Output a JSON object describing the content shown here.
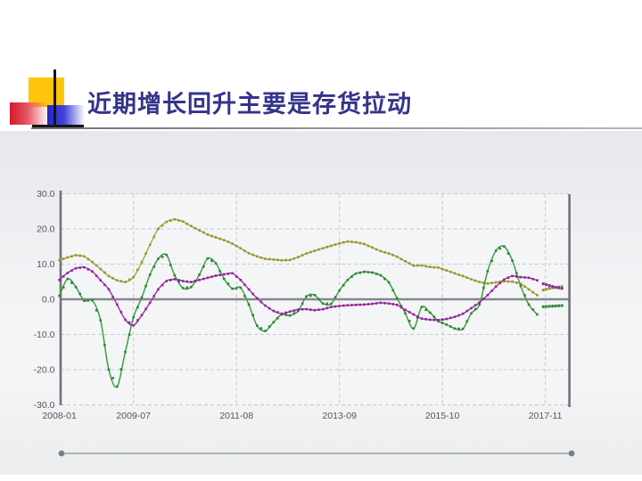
{
  "slide": {
    "title": "近期增长回升主要是存货拉动",
    "title_color": "#34348c"
  },
  "chart_data": {
    "type": "line",
    "title": "",
    "xlabel": "",
    "ylabel": "",
    "x_unit": "months since 2008-01",
    "ylim": [
      -30,
      30
    ],
    "grid": "dashed",
    "legend": "none",
    "y_ticks": [
      {
        "v": 30,
        "label": "30.0"
      },
      {
        "v": 20,
        "label": "20.0"
      },
      {
        "v": 10,
        "label": "10.0"
      },
      {
        "v": 0,
        "label": "0.0"
      },
      {
        "v": -10,
        "label": "-10.0"
      },
      {
        "v": -20,
        "label": "-20.0"
      },
      {
        "v": -30,
        "label": "-30.0"
      }
    ],
    "x_ticks": [
      {
        "m": 0,
        "label": "2008-01"
      },
      {
        "m": 18,
        "label": "2009-07"
      },
      {
        "m": 43,
        "label": "2011-08"
      },
      {
        "m": 68,
        "label": "2013-09"
      },
      {
        "m": 93,
        "label": "2015-10"
      },
      {
        "m": 118,
        "label": "2017-11"
      }
    ],
    "series": [
      {
        "name": "olive-series",
        "color": "#abab43",
        "marker_color": "#96962f",
        "solid": [
          [
            0,
            11.1
          ],
          [
            2,
            11.9
          ],
          [
            4,
            12.5
          ],
          [
            6,
            12.2
          ],
          [
            8,
            10.6
          ],
          [
            10,
            8.6
          ],
          [
            12,
            6.6
          ],
          [
            14,
            5.4
          ],
          [
            16,
            4.9
          ],
          [
            18,
            6.3
          ],
          [
            20,
            10.5
          ],
          [
            22,
            15.5
          ],
          [
            24,
            20.0
          ],
          [
            26,
            22.0
          ],
          [
            28,
            22.7
          ],
          [
            30,
            22.1
          ],
          [
            32,
            20.8
          ],
          [
            34,
            19.6
          ],
          [
            36,
            18.4
          ],
          [
            38,
            17.6
          ],
          [
            40,
            16.8
          ],
          [
            42,
            15.8
          ],
          [
            44,
            14.5
          ],
          [
            46,
            13.1
          ],
          [
            48,
            12.2
          ],
          [
            50,
            11.5
          ],
          [
            52,
            11.3
          ],
          [
            54,
            11.1
          ],
          [
            56,
            11.2
          ],
          [
            58,
            12.0
          ],
          [
            60,
            13.0
          ],
          [
            62,
            13.8
          ],
          [
            64,
            14.5
          ],
          [
            66,
            15.2
          ],
          [
            68,
            15.9
          ],
          [
            70,
            16.4
          ],
          [
            72,
            16.2
          ],
          [
            74,
            15.7
          ],
          [
            76,
            14.7
          ],
          [
            78,
            13.7
          ],
          [
            80,
            13.0
          ],
          [
            82,
            12.1
          ],
          [
            84,
            10.8
          ],
          [
            86,
            9.6
          ],
          [
            88,
            9.6
          ],
          [
            90,
            9.2
          ],
          [
            92,
            9.0
          ],
          [
            94,
            8.2
          ],
          [
            96,
            7.4
          ],
          [
            98,
            6.6
          ],
          [
            100,
            5.7
          ],
          [
            102,
            4.9
          ],
          [
            104,
            4.5
          ],
          [
            106,
            4.8
          ],
          [
            108,
            5.1
          ],
          [
            110,
            5.0
          ],
          [
            112,
            4.4
          ],
          [
            114,
            2.8
          ],
          [
            116,
            1.2
          ]
        ],
        "dotted": [
          [
            117.5,
            2.6
          ],
          [
            119,
            3.1
          ],
          [
            120.5,
            3.4
          ],
          [
            122,
            3.6
          ]
        ]
      },
      {
        "name": "green-series",
        "color": "#3f9e44",
        "marker_color": "#2e8433",
        "solid": [
          [
            0,
            1.0
          ],
          [
            2,
            5.8
          ],
          [
            4,
            3.5
          ],
          [
            6,
            -0.4
          ],
          [
            8,
            -0.3
          ],
          [
            10,
            -6.0
          ],
          [
            12,
            -20.0
          ],
          [
            14,
            -24.8
          ],
          [
            16,
            -15.0
          ],
          [
            18,
            -5.1
          ],
          [
            20,
            0.5
          ],
          [
            22,
            7.0
          ],
          [
            24,
            11.5
          ],
          [
            26,
            12.6
          ],
          [
            28,
            6.8
          ],
          [
            30,
            3.2
          ],
          [
            32,
            3.5
          ],
          [
            34,
            7.0
          ],
          [
            36,
            11.6
          ],
          [
            38,
            10.2
          ],
          [
            40,
            5.8
          ],
          [
            42,
            3.0
          ],
          [
            44,
            3.3
          ],
          [
            46,
            -1.5
          ],
          [
            48,
            -7.5
          ],
          [
            50,
            -9.0
          ],
          [
            52,
            -6.5
          ],
          [
            54,
            -4.3
          ],
          [
            56,
            -4.6
          ],
          [
            58,
            -3.3
          ],
          [
            60,
            0.8
          ],
          [
            62,
            1.2
          ],
          [
            64,
            -1.2
          ],
          [
            66,
            -1.3
          ],
          [
            68,
            2.5
          ],
          [
            70,
            5.5
          ],
          [
            72,
            7.3
          ],
          [
            74,
            7.8
          ],
          [
            76,
            7.6
          ],
          [
            78,
            6.8
          ],
          [
            80,
            4.8
          ],
          [
            82,
            0.3
          ],
          [
            84,
            -4.0
          ],
          [
            86,
            -8.3
          ],
          [
            88,
            -2.2
          ],
          [
            90,
            -3.8
          ],
          [
            92,
            -6.2
          ],
          [
            94,
            -7.2
          ],
          [
            96,
            -8.3
          ],
          [
            98,
            -8.4
          ],
          [
            100,
            -4.0
          ],
          [
            102,
            -1.5
          ],
          [
            104,
            8.0
          ],
          [
            106,
            13.8
          ],
          [
            108,
            15.0
          ],
          [
            110,
            11.0
          ],
          [
            112,
            3.8
          ],
          [
            114,
            -1.5
          ],
          [
            116,
            -4.3
          ]
        ],
        "dotted": [
          [
            117.5,
            -2.1
          ],
          [
            119,
            -2.0
          ],
          [
            120.5,
            -1.9
          ],
          [
            122,
            -1.8
          ]
        ]
      },
      {
        "name": "purple-series",
        "color": "#a63aae",
        "marker_color": "#8f2496",
        "solid": [
          [
            0,
            5.5
          ],
          [
            2,
            7.5
          ],
          [
            4,
            8.8
          ],
          [
            6,
            9.1
          ],
          [
            8,
            7.9
          ],
          [
            10,
            5.4
          ],
          [
            12,
            2.8
          ],
          [
            14,
            -1.5
          ],
          [
            16,
            -5.8
          ],
          [
            18,
            -7.4
          ],
          [
            20,
            -4.5
          ],
          [
            22,
            -1.0
          ],
          [
            24,
            2.8
          ],
          [
            26,
            5.2
          ],
          [
            28,
            5.7
          ],
          [
            30,
            5.2
          ],
          [
            32,
            4.9
          ],
          [
            34,
            5.5
          ],
          [
            36,
            6.1
          ],
          [
            38,
            6.7
          ],
          [
            40,
            7.1
          ],
          [
            42,
            7.4
          ],
          [
            44,
            5.5
          ],
          [
            46,
            2.8
          ],
          [
            48,
            0.3
          ],
          [
            50,
            -1.8
          ],
          [
            52,
            -3.3
          ],
          [
            54,
            -4.1
          ],
          [
            56,
            -3.5
          ],
          [
            58,
            -2.9
          ],
          [
            60,
            -2.8
          ],
          [
            62,
            -3.1
          ],
          [
            64,
            -2.8
          ],
          [
            66,
            -2.2
          ],
          [
            68,
            -1.9
          ],
          [
            70,
            -1.7
          ],
          [
            72,
            -1.6
          ],
          [
            74,
            -1.5
          ],
          [
            76,
            -1.3
          ],
          [
            78,
            -1.0
          ],
          [
            80,
            -1.2
          ],
          [
            82,
            -1.6
          ],
          [
            84,
            -3.0
          ],
          [
            86,
            -4.3
          ],
          [
            88,
            -5.5
          ],
          [
            90,
            -5.8
          ],
          [
            92,
            -5.9
          ],
          [
            94,
            -5.6
          ],
          [
            96,
            -5.0
          ],
          [
            98,
            -4.1
          ],
          [
            100,
            -2.5
          ],
          [
            102,
            -0.9
          ],
          [
            104,
            1.2
          ],
          [
            106,
            3.6
          ],
          [
            108,
            5.6
          ],
          [
            110,
            6.6
          ],
          [
            112,
            6.3
          ],
          [
            114,
            6.1
          ],
          [
            116,
            5.4
          ]
        ],
        "dotted": [
          [
            117.5,
            4.4
          ],
          [
            119,
            3.9
          ],
          [
            120.5,
            3.4
          ],
          [
            122,
            3.1
          ]
        ]
      }
    ],
    "style_colors": {
      "grid": "#c9c9cd",
      "zero_line": "#87878d",
      "axis": "#71717b",
      "tick_label": "#55555a",
      "plot_bg": "#f4f5f7"
    }
  },
  "footer": {
    "line_color": "#97a0ae",
    "dot_color": "#767f90"
  }
}
